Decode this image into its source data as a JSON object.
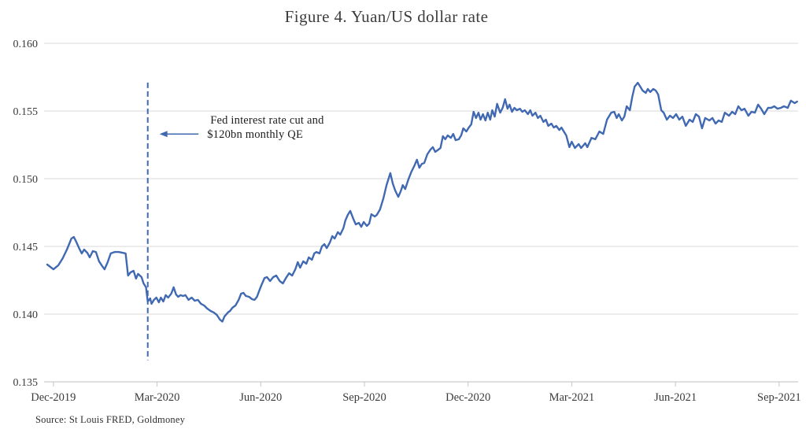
{
  "title": "Figure 4. Yuan/US dollar rate",
  "source": "Source: St Louis FRED, Goldmoney",
  "annotation": {
    "line1": "Fed interest rate cut and",
    "line2": "$120bn monthly QE"
  },
  "colors": {
    "line": "#4169b2",
    "grid": "#d9d9d9",
    "axis": "#bfbfbf",
    "tick": "#c6c6c6",
    "label_text": "#3b3b3b",
    "annotation_text": "#1c1c1c"
  },
  "chart_data": {
    "type": "line",
    "title": "Figure 4. Yuan/US dollar rate",
    "xlabel": "",
    "ylabel": "",
    "grid": "horizontal",
    "legend": "none",
    "ylim": [
      0.135,
      0.16
    ],
    "yticks": [
      0.135,
      0.14,
      0.145,
      0.15,
      0.155,
      0.16
    ],
    "yticklabels": [
      "0.135",
      "0.140",
      "0.145",
      "0.150",
      "0.155",
      "0.160"
    ],
    "xlim_months": [
      -0.27,
      21.55
    ],
    "xticks_months": [
      0,
      3,
      6,
      9,
      12,
      15,
      18,
      21
    ],
    "xticklabels": [
      "Dec-2019",
      "Mar-2020",
      "Jun-2020",
      "Sep-2020",
      "Dec-2020",
      "Mar-2021",
      "Jun-2021",
      "Sep-2021"
    ],
    "event_line": {
      "month": 2.73,
      "v_top": 0.1571,
      "v_bottom": 0.1366
    },
    "arrow": {
      "from_month": 4.2,
      "to_month": 3.07,
      "v": 0.1533
    },
    "annotation_pos": {
      "month": 4.45,
      "v": 0.15485
    },
    "series": [
      {
        "name": "Yuan/US dollar rate",
        "x_unit": "months since Dec-2019",
        "points": [
          [
            -0.18,
            0.14366
          ],
          [
            0,
            0.14331
          ],
          [
            0.14,
            0.1436
          ],
          [
            0.27,
            0.14413
          ],
          [
            0.39,
            0.14477
          ],
          [
            0.52,
            0.14558
          ],
          [
            0.59,
            0.1457
          ],
          [
            0.66,
            0.14535
          ],
          [
            0.75,
            0.14483
          ],
          [
            0.82,
            0.14448
          ],
          [
            0.89,
            0.14477
          ],
          [
            0.98,
            0.14453
          ],
          [
            1.05,
            0.14419
          ],
          [
            1.14,
            0.14465
          ],
          [
            1.23,
            0.14459
          ],
          [
            1.32,
            0.1439
          ],
          [
            1.41,
            0.14355
          ],
          [
            1.48,
            0.14331
          ],
          [
            1.57,
            0.14384
          ],
          [
            1.66,
            0.14448
          ],
          [
            1.77,
            0.14459
          ],
          [
            1.89,
            0.14459
          ],
          [
            2.0,
            0.14453
          ],
          [
            2.09,
            0.14448
          ],
          [
            2.16,
            0.14285
          ],
          [
            2.23,
            0.14308
          ],
          [
            2.32,
            0.1432
          ],
          [
            2.39,
            0.14262
          ],
          [
            2.45,
            0.14297
          ],
          [
            2.55,
            0.14273
          ],
          [
            2.61,
            0.14227
          ],
          [
            2.68,
            0.14198
          ],
          [
            2.73,
            0.14093
          ],
          [
            2.8,
            0.14116
          ],
          [
            2.84,
            0.14076
          ],
          [
            2.91,
            0.14105
          ],
          [
            2.98,
            0.14122
          ],
          [
            3.05,
            0.14087
          ],
          [
            3.11,
            0.14122
          ],
          [
            3.18,
            0.14093
          ],
          [
            3.25,
            0.1414
          ],
          [
            3.32,
            0.14122
          ],
          [
            3.41,
            0.14151
          ],
          [
            3.48,
            0.14198
          ],
          [
            3.55,
            0.14145
          ],
          [
            3.61,
            0.14128
          ],
          [
            3.68,
            0.1414
          ],
          [
            3.75,
            0.14134
          ],
          [
            3.82,
            0.1414
          ],
          [
            3.91,
            0.14105
          ],
          [
            4.0,
            0.14122
          ],
          [
            4.09,
            0.14099
          ],
          [
            4.18,
            0.14105
          ],
          [
            4.27,
            0.14076
          ],
          [
            4.36,
            0.14064
          ],
          [
            4.45,
            0.14041
          ],
          [
            4.55,
            0.14023
          ],
          [
            4.64,
            0.14012
          ],
          [
            4.73,
            0.13994
          ],
          [
            4.82,
            0.13959
          ],
          [
            4.89,
            0.13945
          ],
          [
            4.95,
            0.13983
          ],
          [
            5.05,
            0.14012
          ],
          [
            5.11,
            0.14023
          ],
          [
            5.18,
            0.14047
          ],
          [
            5.27,
            0.14064
          ],
          [
            5.36,
            0.14105
          ],
          [
            5.43,
            0.14151
          ],
          [
            5.5,
            0.14157
          ],
          [
            5.57,
            0.14134
          ],
          [
            5.66,
            0.14128
          ],
          [
            5.75,
            0.1411
          ],
          [
            5.82,
            0.14105
          ],
          [
            5.89,
            0.14128
          ],
          [
            5.95,
            0.14169
          ],
          [
            6.02,
            0.14215
          ],
          [
            6.11,
            0.14267
          ],
          [
            6.18,
            0.14273
          ],
          [
            6.27,
            0.14244
          ],
          [
            6.36,
            0.14273
          ],
          [
            6.45,
            0.14285
          ],
          [
            6.55,
            0.14244
          ],
          [
            6.64,
            0.14227
          ],
          [
            6.73,
            0.14267
          ],
          [
            6.82,
            0.14302
          ],
          [
            6.91,
            0.14285
          ],
          [
            7.0,
            0.14331
          ],
          [
            7.07,
            0.14384
          ],
          [
            7.14,
            0.14343
          ],
          [
            7.23,
            0.1439
          ],
          [
            7.32,
            0.14372
          ],
          [
            7.39,
            0.14419
          ],
          [
            7.48,
            0.14401
          ],
          [
            7.55,
            0.14448
          ],
          [
            7.61,
            0.14459
          ],
          [
            7.7,
            0.14448
          ],
          [
            7.77,
            0.145
          ],
          [
            7.84,
            0.14517
          ],
          [
            7.91,
            0.14488
          ],
          [
            8.0,
            0.14529
          ],
          [
            8.07,
            0.14576
          ],
          [
            8.14,
            0.14558
          ],
          [
            8.23,
            0.14605
          ],
          [
            8.3,
            0.14587
          ],
          [
            8.39,
            0.14634
          ],
          [
            8.45,
            0.14692
          ],
          [
            8.52,
            0.14733
          ],
          [
            8.59,
            0.14762
          ],
          [
            8.68,
            0.14703
          ],
          [
            8.75,
            0.14663
          ],
          [
            8.84,
            0.14674
          ],
          [
            8.91,
            0.14645
          ],
          [
            8.98,
            0.1468
          ],
          [
            9.07,
            0.14651
          ],
          [
            9.14,
            0.14669
          ],
          [
            9.2,
            0.14738
          ],
          [
            9.3,
            0.14721
          ],
          [
            9.36,
            0.14733
          ],
          [
            9.45,
            0.14773
          ],
          [
            9.55,
            0.14855
          ],
          [
            9.64,
            0.14953
          ],
          [
            9.75,
            0.15041
          ],
          [
            9.82,
            0.14965
          ],
          [
            9.89,
            0.14913
          ],
          [
            9.98,
            0.14866
          ],
          [
            10.05,
            0.14907
          ],
          [
            10.11,
            0.14953
          ],
          [
            10.18,
            0.14924
          ],
          [
            10.27,
            0.14994
          ],
          [
            10.36,
            0.15052
          ],
          [
            10.45,
            0.15099
          ],
          [
            10.52,
            0.1514
          ],
          [
            10.59,
            0.15081
          ],
          [
            10.66,
            0.1511
          ],
          [
            10.73,
            0.15116
          ],
          [
            10.82,
            0.1518
          ],
          [
            10.91,
            0.15215
          ],
          [
            10.98,
            0.15233
          ],
          [
            11.05,
            0.15198
          ],
          [
            11.14,
            0.15215
          ],
          [
            11.2,
            0.15227
          ],
          [
            11.27,
            0.15314
          ],
          [
            11.34,
            0.15291
          ],
          [
            11.41,
            0.1532
          ],
          [
            11.5,
            0.15302
          ],
          [
            11.57,
            0.15331
          ],
          [
            11.64,
            0.15285
          ],
          [
            11.73,
            0.15291
          ],
          [
            11.8,
            0.1532
          ],
          [
            11.86,
            0.15372
          ],
          [
            11.95,
            0.15349
          ],
          [
            12.02,
            0.15378
          ],
          [
            12.09,
            0.15401
          ],
          [
            12.16,
            0.15494
          ],
          [
            12.23,
            0.15448
          ],
          [
            12.3,
            0.15488
          ],
          [
            12.36,
            0.15436
          ],
          [
            12.43,
            0.15477
          ],
          [
            12.5,
            0.1543
          ],
          [
            12.57,
            0.15488
          ],
          [
            12.64,
            0.15436
          ],
          [
            12.7,
            0.15506
          ],
          [
            12.77,
            0.15459
          ],
          [
            12.84,
            0.15553
          ],
          [
            12.93,
            0.15488
          ],
          [
            13.0,
            0.15523
          ],
          [
            13.07,
            0.15587
          ],
          [
            13.14,
            0.15517
          ],
          [
            13.2,
            0.15547
          ],
          [
            13.27,
            0.15494
          ],
          [
            13.34,
            0.15523
          ],
          [
            13.41,
            0.15506
          ],
          [
            13.5,
            0.15517
          ],
          [
            13.57,
            0.15494
          ],
          [
            13.64,
            0.15506
          ],
          [
            13.73,
            0.15477
          ],
          [
            13.8,
            0.15506
          ],
          [
            13.86,
            0.15465
          ],
          [
            13.95,
            0.15488
          ],
          [
            14.02,
            0.15448
          ],
          [
            14.09,
            0.15465
          ],
          [
            14.18,
            0.15419
          ],
          [
            14.25,
            0.15436
          ],
          [
            14.32,
            0.1539
          ],
          [
            14.41,
            0.15407
          ],
          [
            14.48,
            0.15378
          ],
          [
            14.55,
            0.1539
          ],
          [
            14.64,
            0.1536
          ],
          [
            14.7,
            0.15378
          ],
          [
            14.77,
            0.15349
          ],
          [
            14.84,
            0.1532
          ],
          [
            14.93,
            0.15233
          ],
          [
            15.0,
            0.15273
          ],
          [
            15.09,
            0.15227
          ],
          [
            15.2,
            0.15256
          ],
          [
            15.27,
            0.15227
          ],
          [
            15.39,
            0.15262
          ],
          [
            15.45,
            0.15233
          ],
          [
            15.57,
            0.15302
          ],
          [
            15.68,
            0.15291
          ],
          [
            15.8,
            0.15349
          ],
          [
            15.91,
            0.15331
          ],
          [
            16.02,
            0.15436
          ],
          [
            16.14,
            0.15488
          ],
          [
            16.23,
            0.15494
          ],
          [
            16.3,
            0.15448
          ],
          [
            16.36,
            0.15477
          ],
          [
            16.45,
            0.1543
          ],
          [
            16.52,
            0.15459
          ],
          [
            16.59,
            0.15535
          ],
          [
            16.68,
            0.15506
          ],
          [
            16.75,
            0.15605
          ],
          [
            16.82,
            0.1568
          ],
          [
            16.91,
            0.15709
          ],
          [
            16.98,
            0.1568
          ],
          [
            17.05,
            0.15651
          ],
          [
            17.14,
            0.15634
          ],
          [
            17.2,
            0.15663
          ],
          [
            17.27,
            0.1564
          ],
          [
            17.36,
            0.15663
          ],
          [
            17.43,
            0.15651
          ],
          [
            17.5,
            0.15622
          ],
          [
            17.59,
            0.15506
          ],
          [
            17.66,
            0.15488
          ],
          [
            17.75,
            0.15436
          ],
          [
            17.84,
            0.15465
          ],
          [
            17.93,
            0.15448
          ],
          [
            18.02,
            0.15477
          ],
          [
            18.11,
            0.15436
          ],
          [
            18.2,
            0.15459
          ],
          [
            18.3,
            0.1539
          ],
          [
            18.41,
            0.15436
          ],
          [
            18.5,
            0.15419
          ],
          [
            18.59,
            0.15477
          ],
          [
            18.68,
            0.15459
          ],
          [
            18.77,
            0.15372
          ],
          [
            18.86,
            0.15448
          ],
          [
            18.98,
            0.1543
          ],
          [
            19.07,
            0.15448
          ],
          [
            19.16,
            0.15407
          ],
          [
            19.25,
            0.1543
          ],
          [
            19.34,
            0.15419
          ],
          [
            19.43,
            0.15488
          ],
          [
            19.55,
            0.15465
          ],
          [
            19.64,
            0.15494
          ],
          [
            19.73,
            0.15477
          ],
          [
            19.82,
            0.15535
          ],
          [
            19.91,
            0.15506
          ],
          [
            20.0,
            0.15517
          ],
          [
            20.11,
            0.15465
          ],
          [
            20.2,
            0.15494
          ],
          [
            20.3,
            0.15488
          ],
          [
            20.39,
            0.15547
          ],
          [
            20.48,
            0.15517
          ],
          [
            20.57,
            0.15477
          ],
          [
            20.68,
            0.15523
          ],
          [
            20.77,
            0.15523
          ],
          [
            20.86,
            0.15535
          ],
          [
            20.95,
            0.15517
          ],
          [
            21.05,
            0.15523
          ],
          [
            21.14,
            0.15535
          ],
          [
            21.25,
            0.15523
          ],
          [
            21.34,
            0.15576
          ],
          [
            21.45,
            0.15558
          ],
          [
            21.52,
            0.1557
          ]
        ]
      }
    ]
  }
}
